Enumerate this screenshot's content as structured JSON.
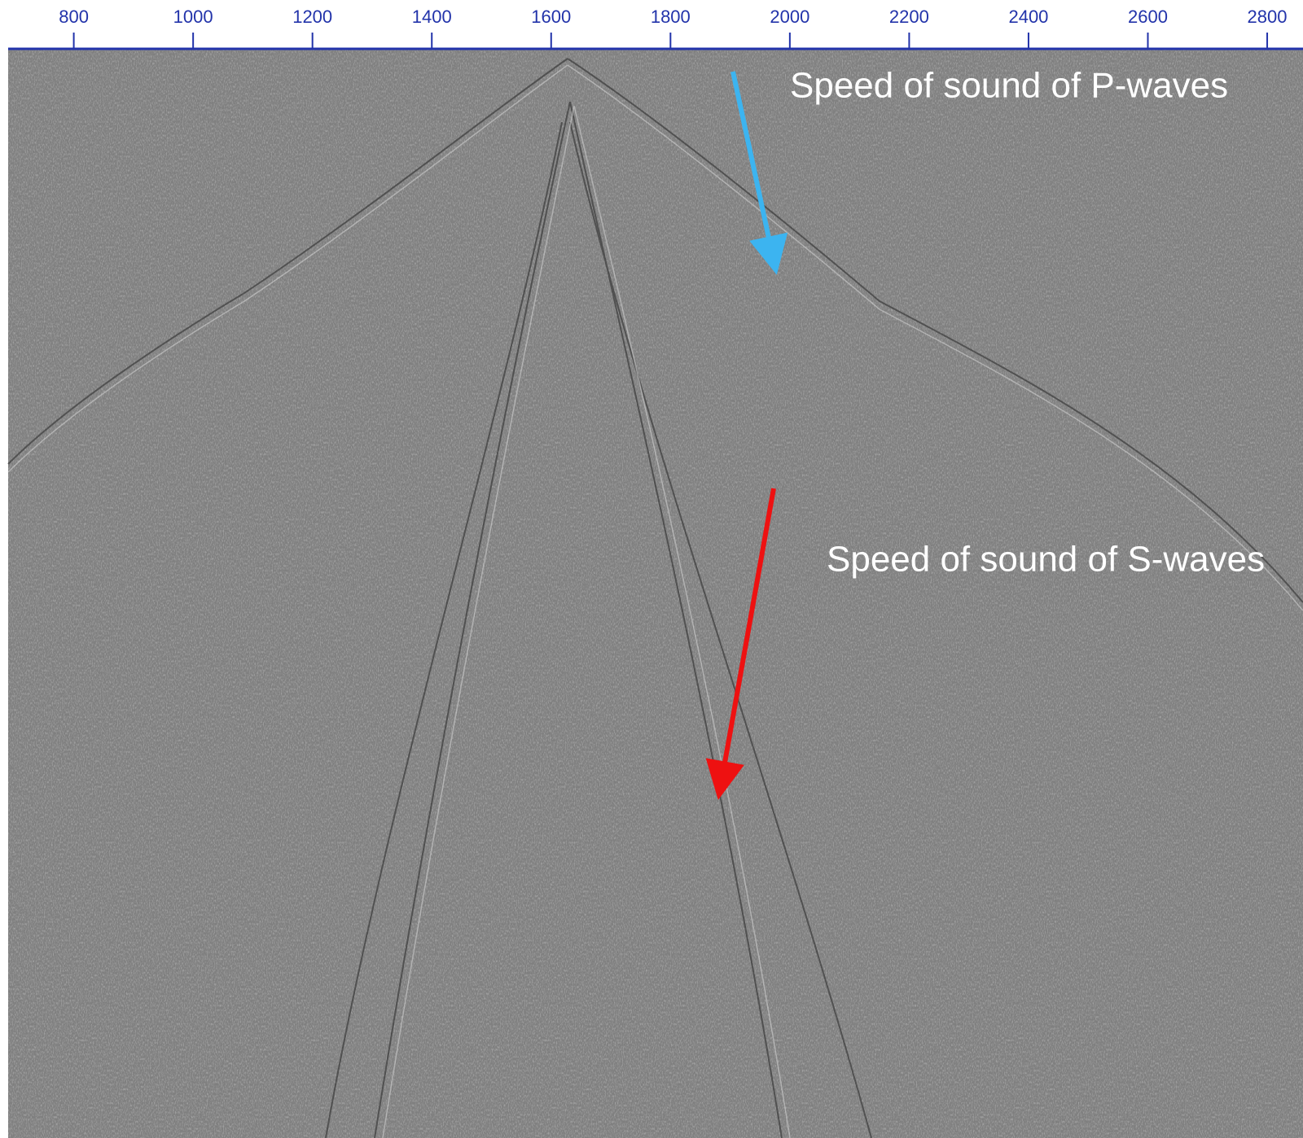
{
  "chart_data": {
    "type": "seismic",
    "xlim": [
      690,
      2860
    ],
    "xticks": [
      800,
      1000,
      1200,
      1400,
      1600,
      1800,
      2000,
      2200,
      2400,
      2600,
      2800
    ],
    "axis_color": "#2233aa",
    "annotations": [
      "Speed of sound of P-waves",
      "Speed of sound of S-waves"
    ]
  }
}
